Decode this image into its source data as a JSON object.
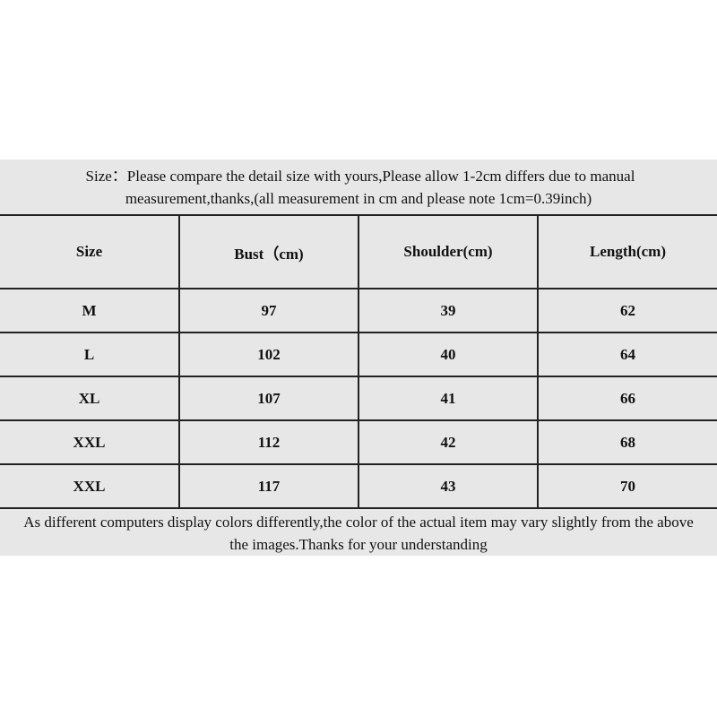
{
  "note": {
    "line1": "Size：Please compare the detail size with yours,Please allow 1-2cm differs due to manual",
    "line2": "measurement,thanks,(all measurement in cm and please note 1cm=0.39inch)"
  },
  "table": {
    "headers": [
      "Size",
      "Bust（cm)",
      "Shoulder(cm)",
      "Length(cm)"
    ],
    "rows": [
      [
        "M",
        "97",
        "39",
        "62"
      ],
      [
        "L",
        "102",
        "40",
        "64"
      ],
      [
        "XL",
        "107",
        "41",
        "66"
      ],
      [
        "XXL",
        "112",
        "42",
        "68"
      ],
      [
        "XXL",
        "117",
        "43",
        "70"
      ]
    ]
  },
  "footer": {
    "line1": "As different computers display colors differently,the color of the actual item may vary slightly from the above",
    "line2": "the images.Thanks for your understanding"
  }
}
